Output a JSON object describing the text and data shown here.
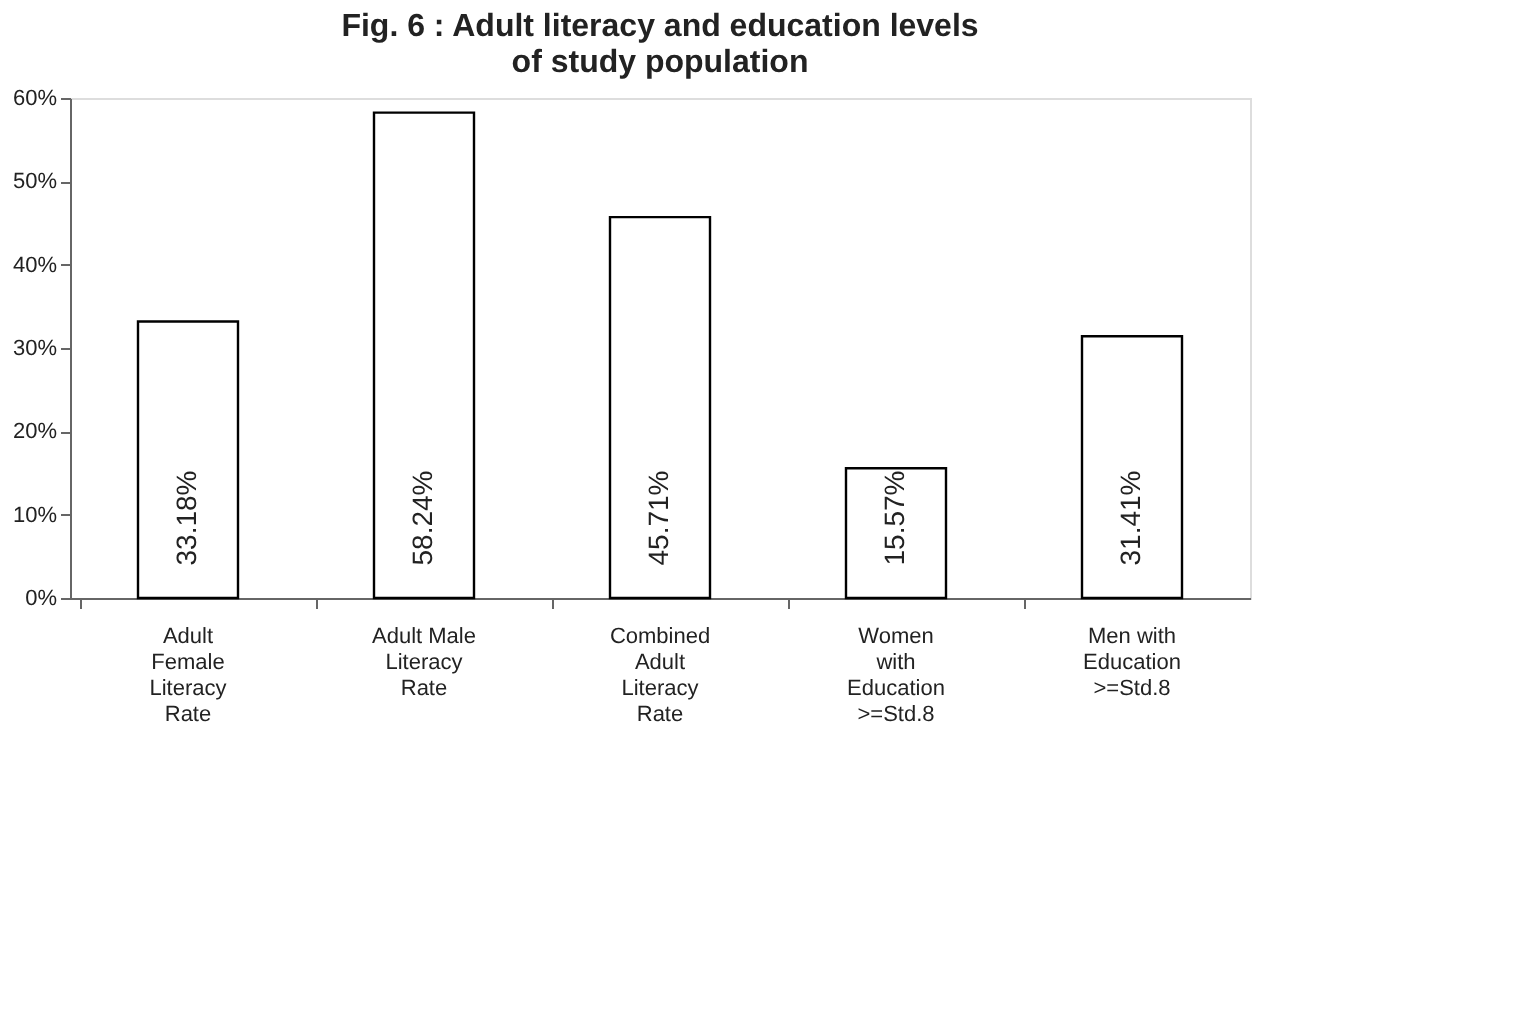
{
  "chart_data": {
    "type": "bar",
    "title": "Fig. 6 : Adult literacy and education levels\nof study population",
    "categories": [
      "Adult\nFemale\nLiteracy\nRate",
      "Adult Male\nLiteracy\nRate",
      "Combined\nAdult\nLiteracy\nRate",
      "Women\nwith\nEducation\n>=Std.8",
      "Men with\nEducation\n>=Std.8"
    ],
    "values": [
      33.18,
      58.24,
      45.71,
      15.57,
      31.41
    ],
    "value_labels": [
      "33.18%",
      "58.24%",
      "45.71%",
      "15.57%",
      "31.41%"
    ],
    "color": "#ffffff",
    "ylim": [
      0,
      60
    ],
    "yticks": [
      {
        "value": 0,
        "label": "0%"
      },
      {
        "value": 10,
        "label": "10%"
      },
      {
        "value": 20,
        "label": "20%"
      },
      {
        "value": 30,
        "label": "30%"
      },
      {
        "value": 40,
        "label": "40%"
      },
      {
        "value": 50,
        "label": "50%"
      },
      {
        "value": 60,
        "label": "60%"
      }
    ],
    "grid": false
  }
}
